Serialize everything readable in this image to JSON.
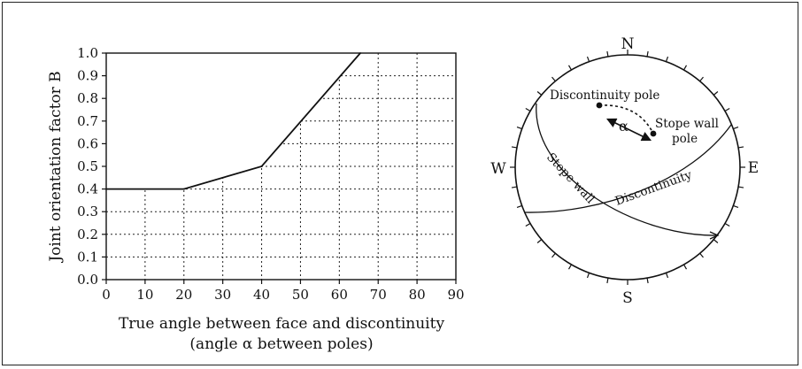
{
  "chart_data": {
    "type": "line",
    "x": [
      0,
      20,
      40,
      65.4
    ],
    "y": [
      0.4,
      0.4,
      0.5,
      1.0
    ],
    "xticks": [
      "0",
      "10",
      "20",
      "30",
      "40",
      "50",
      "60",
      "70",
      "80",
      "90"
    ],
    "yticks": [
      "0.0",
      "0.1",
      "0.2",
      "0.3",
      "0.4",
      "0.5",
      "0.6",
      "0.7",
      "0.8",
      "0.9",
      "1.0"
    ],
    "xlim": [
      0,
      90
    ],
    "ylim": [
      0,
      1.0
    ],
    "ylabel": "Joint orientation factor B",
    "xlabel_line1": "True angle between face and discontinuity",
    "xlabel_line2": "(angle α between poles)",
    "grid": "dotted, shown below the curve only"
  },
  "stereonet": {
    "north": "N",
    "south": "S",
    "east": "E",
    "west": "W",
    "discontinuity_pole_label": "Discontinuity pole",
    "stope_wall_pole_label_line1": "Stope wall",
    "stope_wall_pole_label_line2": "pole",
    "alpha_label": "α",
    "stope_wall_trace_label": "Stope wall",
    "discontinuity_trace_label": "Discontinuity"
  }
}
